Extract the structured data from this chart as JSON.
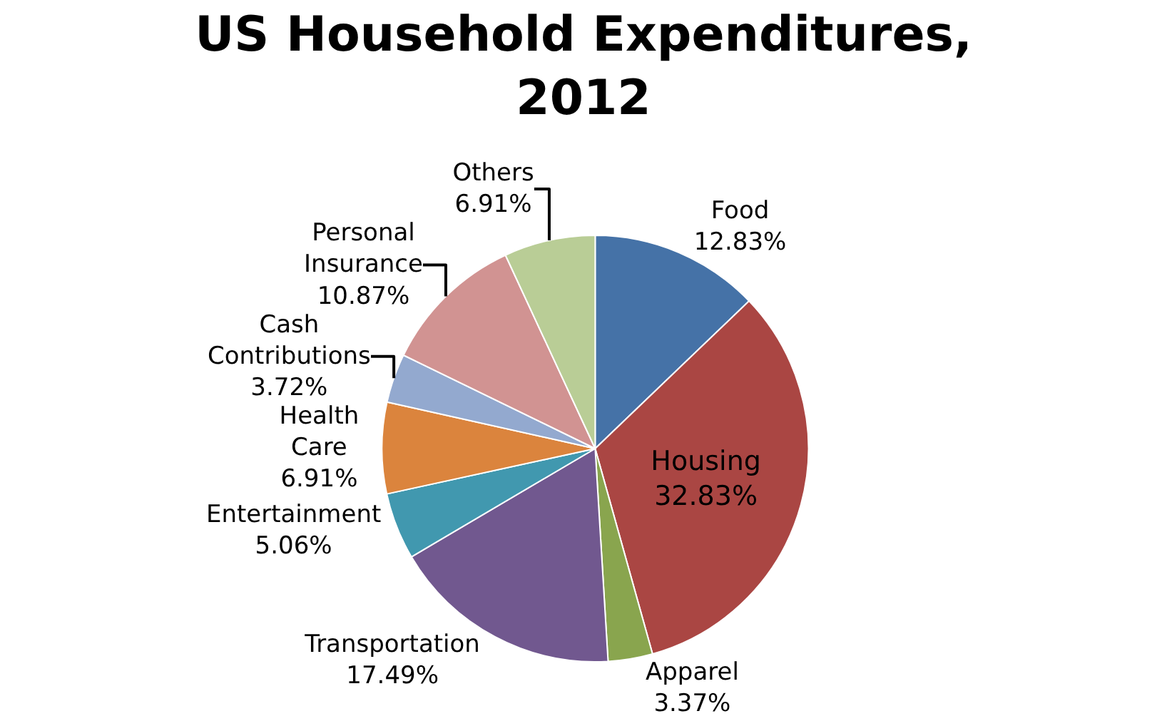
{
  "chart_data": {
    "type": "pie",
    "title": "US Household Expenditures, 2012",
    "categories": [
      "Food",
      "Housing",
      "Apparel",
      "Transportation",
      "Entertainment",
      "Health Care",
      "Cash Contributions",
      "Personal Insurance",
      "Others"
    ],
    "values": [
      12.83,
      32.83,
      3.37,
      17.49,
      5.06,
      6.91,
      3.72,
      10.87,
      6.91
    ],
    "colors": [
      "#4572a7",
      "#aa4643",
      "#89a54e",
      "#71588f",
      "#4198af",
      "#db843d",
      "#93a9cf",
      "#d19392",
      "#b9cd96"
    ],
    "value_labels": [
      "12.83%",
      "32.83%",
      "3.37%",
      "17.49%",
      "5.06%",
      "6.91%",
      "3.72%",
      "10.87%",
      "6.91%"
    ],
    "legend": false
  }
}
